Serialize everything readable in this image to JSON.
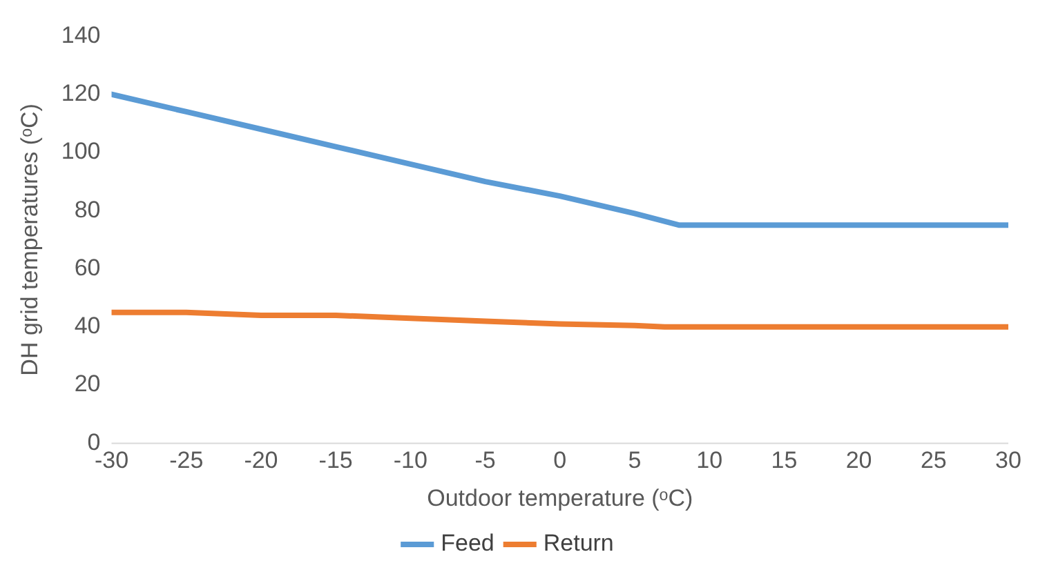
{
  "chart_data": {
    "type": "line",
    "xlabel": "Outdoor temperature (ᵒC)",
    "ylabel": "DH grid temperatures (ᵒC)",
    "xlim": [
      -30,
      30
    ],
    "xticks": [
      -30,
      -25,
      -20,
      -15,
      -10,
      -5,
      0,
      5,
      10,
      15,
      20,
      25,
      30
    ],
    "ylim": [
      0,
      140
    ],
    "yticks": [
      0,
      20,
      40,
      60,
      80,
      100,
      120,
      140
    ],
    "grid": false,
    "legend": "bottom",
    "marker": "none",
    "line_style": "solid",
    "series": [
      {
        "name": "Feed",
        "color": "#5b9bd5",
        "x": [
          -30,
          -25,
          -20,
          -15,
          -10,
          -5,
          0,
          5,
          8,
          30
        ],
        "values": [
          120,
          114,
          108,
          102,
          96,
          90,
          85,
          79,
          75,
          75
        ]
      },
      {
        "name": "Return",
        "color": "#ed7d31",
        "x": [
          -30,
          -25,
          -20,
          -15,
          -10,
          -5,
          0,
          5,
          7,
          30
        ],
        "values": [
          45,
          45,
          44,
          44,
          43,
          42,
          41,
          40.5,
          40,
          40
        ]
      }
    ]
  }
}
